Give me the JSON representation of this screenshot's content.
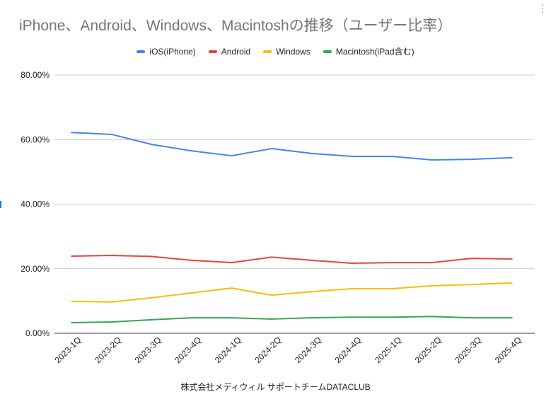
{
  "chart_data": {
    "type": "line",
    "title": "iPhone、Android、Windows、Macintoshの推移（ユーザー比率）",
    "xlabel": "株式会社メディウィル サポートチームDATACLUB",
    "ylabel": "",
    "ylim": [
      0,
      80
    ],
    "yticks": [
      "0.00%",
      "20.00%",
      "40.00%",
      "60.00%",
      "80.00%"
    ],
    "grid": true,
    "legend_position": "top",
    "categories": [
      "2023-1Q",
      "2023-2Q",
      "2023-3Q",
      "2023-4Q",
      "2024-1Q",
      "2024-2Q",
      "2024-3Q",
      "2024-4Q",
      "2025-1Q",
      "2025-2Q",
      "2025-3Q",
      "2025-4Q"
    ],
    "series": [
      {
        "name": "iOS(iPhone)",
        "color": "#4285f4",
        "values": [
          62.2,
          61.6,
          58.5,
          56.5,
          55.0,
          57.2,
          55.7,
          54.8,
          54.8,
          53.7,
          53.9,
          54.4
        ]
      },
      {
        "name": "Android",
        "color": "#ea4335",
        "values": [
          23.9,
          24.1,
          23.8,
          22.6,
          21.9,
          23.6,
          22.6,
          21.7,
          21.9,
          21.9,
          23.2,
          23.0
        ]
      },
      {
        "name": "Windows",
        "color": "#fbbc04",
        "values": [
          9.9,
          9.7,
          11.0,
          12.5,
          14.0,
          11.8,
          12.9,
          13.8,
          13.8,
          14.7,
          15.1,
          15.6
        ]
      },
      {
        "name": "Macintosh(iPad含む)",
        "color": "#34a853",
        "values": [
          3.3,
          3.5,
          4.2,
          4.8,
          4.8,
          4.4,
          4.8,
          5.0,
          5.0,
          5.2,
          4.8,
          4.8
        ]
      }
    ]
  }
}
